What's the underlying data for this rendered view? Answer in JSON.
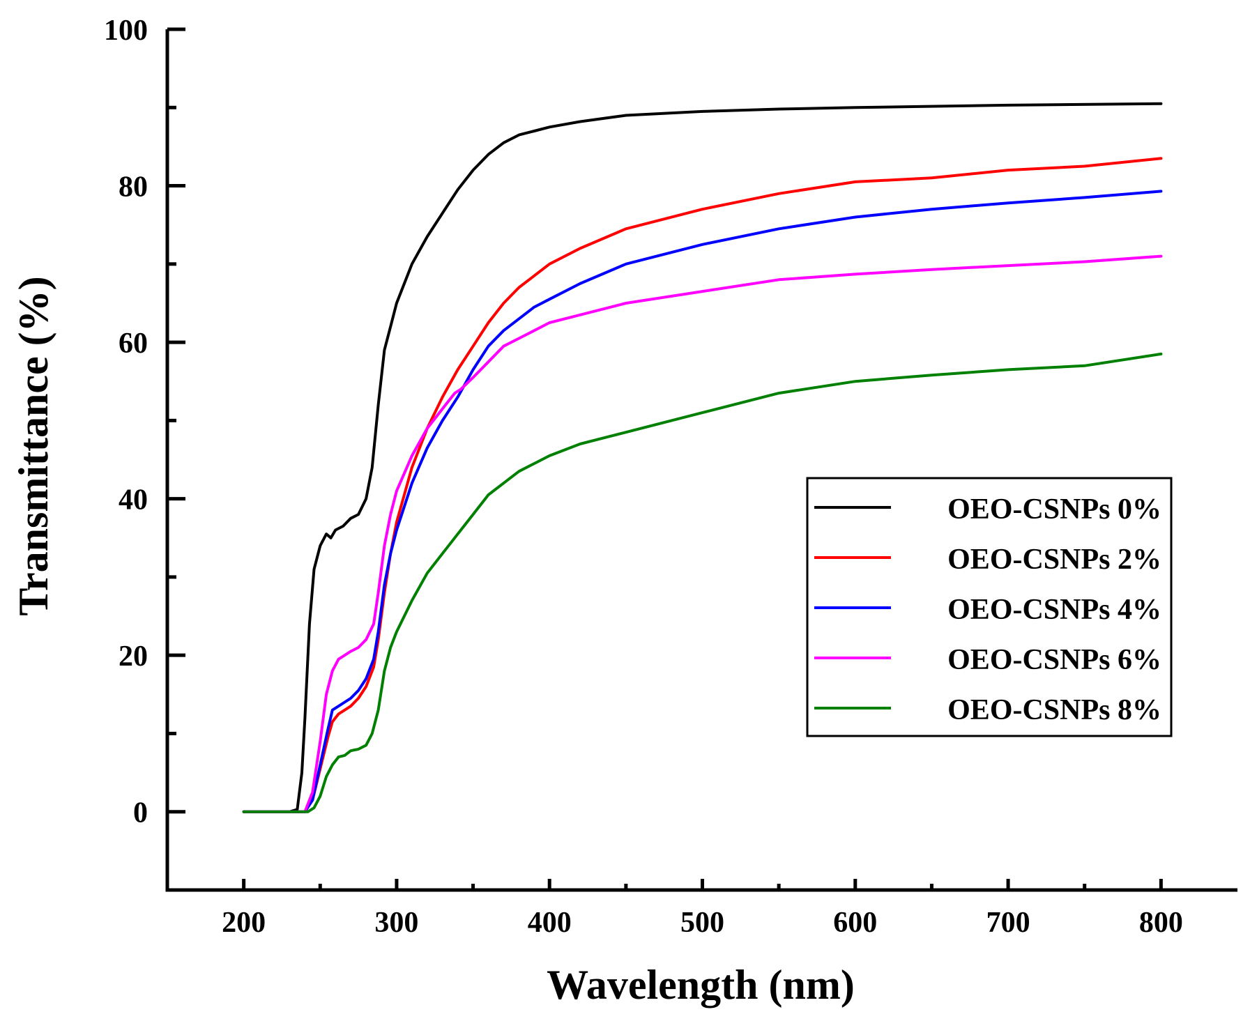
{
  "chart_data": {
    "type": "line",
    "title": "",
    "xlabel": "Wavelength (nm)",
    "ylabel": "Transmittance (%)",
    "xlim": [
      150,
      850
    ],
    "ylim": [
      -10,
      100
    ],
    "xticks": [
      200,
      300,
      400,
      500,
      600,
      700,
      800
    ],
    "yticks": [
      0,
      20,
      40,
      60,
      80,
      100
    ],
    "xtick_labels": [
      "200",
      "300",
      "400",
      "500",
      "600",
      "700",
      "800"
    ],
    "ytick_labels": [
      "0",
      "20",
      "40",
      "60",
      "80",
      "100"
    ],
    "grid": false,
    "legend_position": "right",
    "series": [
      {
        "name": "OEO-CSNPs 0%",
        "color": "#000000",
        "x": [
          200,
          230,
          235,
          238,
          240,
          243,
          246,
          250,
          254,
          257,
          260,
          265,
          270,
          275,
          280,
          284,
          288,
          292,
          296,
          300,
          310,
          320,
          330,
          340,
          350,
          360,
          370,
          380,
          390,
          400,
          420,
          450,
          500,
          550,
          600,
          700,
          800
        ],
        "y": [
          0,
          0,
          0.3,
          5,
          12,
          24,
          31,
          34,
          35.5,
          35,
          36,
          36.5,
          37.5,
          38,
          40,
          44,
          52,
          59,
          62,
          65,
          70,
          73.5,
          76.5,
          79.5,
          82,
          84,
          85.5,
          86.5,
          87,
          87.5,
          88.2,
          89,
          89.5,
          89.8,
          90,
          90.3,
          90.5
        ]
      },
      {
        "name": "OEO-CSNPs 2%",
        "color": "#ff0000",
        "x": [
          200,
          240,
          245,
          250,
          255,
          258,
          262,
          266,
          270,
          275,
          280,
          285,
          288,
          292,
          296,
          300,
          310,
          320,
          330,
          340,
          350,
          360,
          370,
          380,
          390,
          400,
          420,
          450,
          500,
          550,
          600,
          650,
          700,
          750,
          800
        ],
        "y": [
          0,
          0,
          1.5,
          5.5,
          9.5,
          11.5,
          12.5,
          13,
          13.5,
          14.5,
          16,
          18.5,
          22,
          28,
          33,
          37,
          44,
          49,
          53,
          56.5,
          59.5,
          62.5,
          65,
          67,
          68.5,
          70,
          72,
          74.5,
          77,
          79,
          80.5,
          81,
          82,
          82.5,
          83.5
        ]
      },
      {
        "name": "OEO-CSNPs 4%",
        "color": "#0000ff",
        "x": [
          200,
          240,
          245,
          250,
          255,
          258,
          262,
          266,
          270,
          275,
          280,
          285,
          288,
          292,
          296,
          300,
          310,
          320,
          330,
          340,
          350,
          360,
          370,
          380,
          390,
          400,
          420,
          450,
          500,
          550,
          600,
          650,
          700,
          750,
          800
        ],
        "y": [
          0,
          0,
          1.5,
          6,
          10.5,
          13,
          13.5,
          14,
          14.5,
          15.5,
          17,
          19.5,
          23,
          29,
          33,
          36,
          42,
          46.5,
          50,
          53,
          56.5,
          59.5,
          61.5,
          63,
          64.5,
          65.5,
          67.5,
          70,
          72.5,
          74.5,
          76,
          77,
          77.8,
          78.5,
          79.3
        ]
      },
      {
        "name": "OEO-CSNPs 6%",
        "color": "#ff00ff",
        "x": [
          200,
          240,
          245,
          250,
          254,
          258,
          262,
          266,
          270,
          275,
          280,
          285,
          288,
          292,
          296,
          300,
          310,
          320,
          330,
          338,
          342,
          350,
          360,
          370,
          380,
          390,
          400,
          420,
          450,
          500,
          550,
          600,
          650,
          700,
          750,
          800
        ],
        "y": [
          0,
          0,
          2.5,
          9,
          15,
          18,
          19.5,
          20,
          20.5,
          21,
          22,
          24,
          28,
          34,
          38,
          41,
          45.5,
          49,
          51.5,
          53.5,
          54,
          55.5,
          57.5,
          59.5,
          60.5,
          61.5,
          62.5,
          63.5,
          65,
          66.5,
          68,
          68.7,
          69.3,
          69.8,
          70.3,
          71
        ]
      },
      {
        "name": "OEO-CSNPs 8%",
        "color": "#008000",
        "x": [
          200,
          242,
          246,
          250,
          254,
          258,
          262,
          266,
          270,
          275,
          280,
          284,
          288,
          292,
          296,
          300,
          310,
          320,
          330,
          340,
          350,
          360,
          370,
          380,
          390,
          400,
          420,
          450,
          500,
          550,
          600,
          650,
          700,
          750,
          800
        ],
        "y": [
          0,
          0,
          0.5,
          2,
          4.5,
          6,
          7,
          7.2,
          7.8,
          8,
          8.5,
          10,
          13,
          18,
          21,
          23,
          27,
          30.5,
          33,
          35.5,
          38,
          40.5,
          42,
          43.5,
          44.5,
          45.5,
          47,
          48.5,
          51,
          53.5,
          55,
          55.8,
          56.5,
          57,
          58.5
        ]
      }
    ]
  }
}
